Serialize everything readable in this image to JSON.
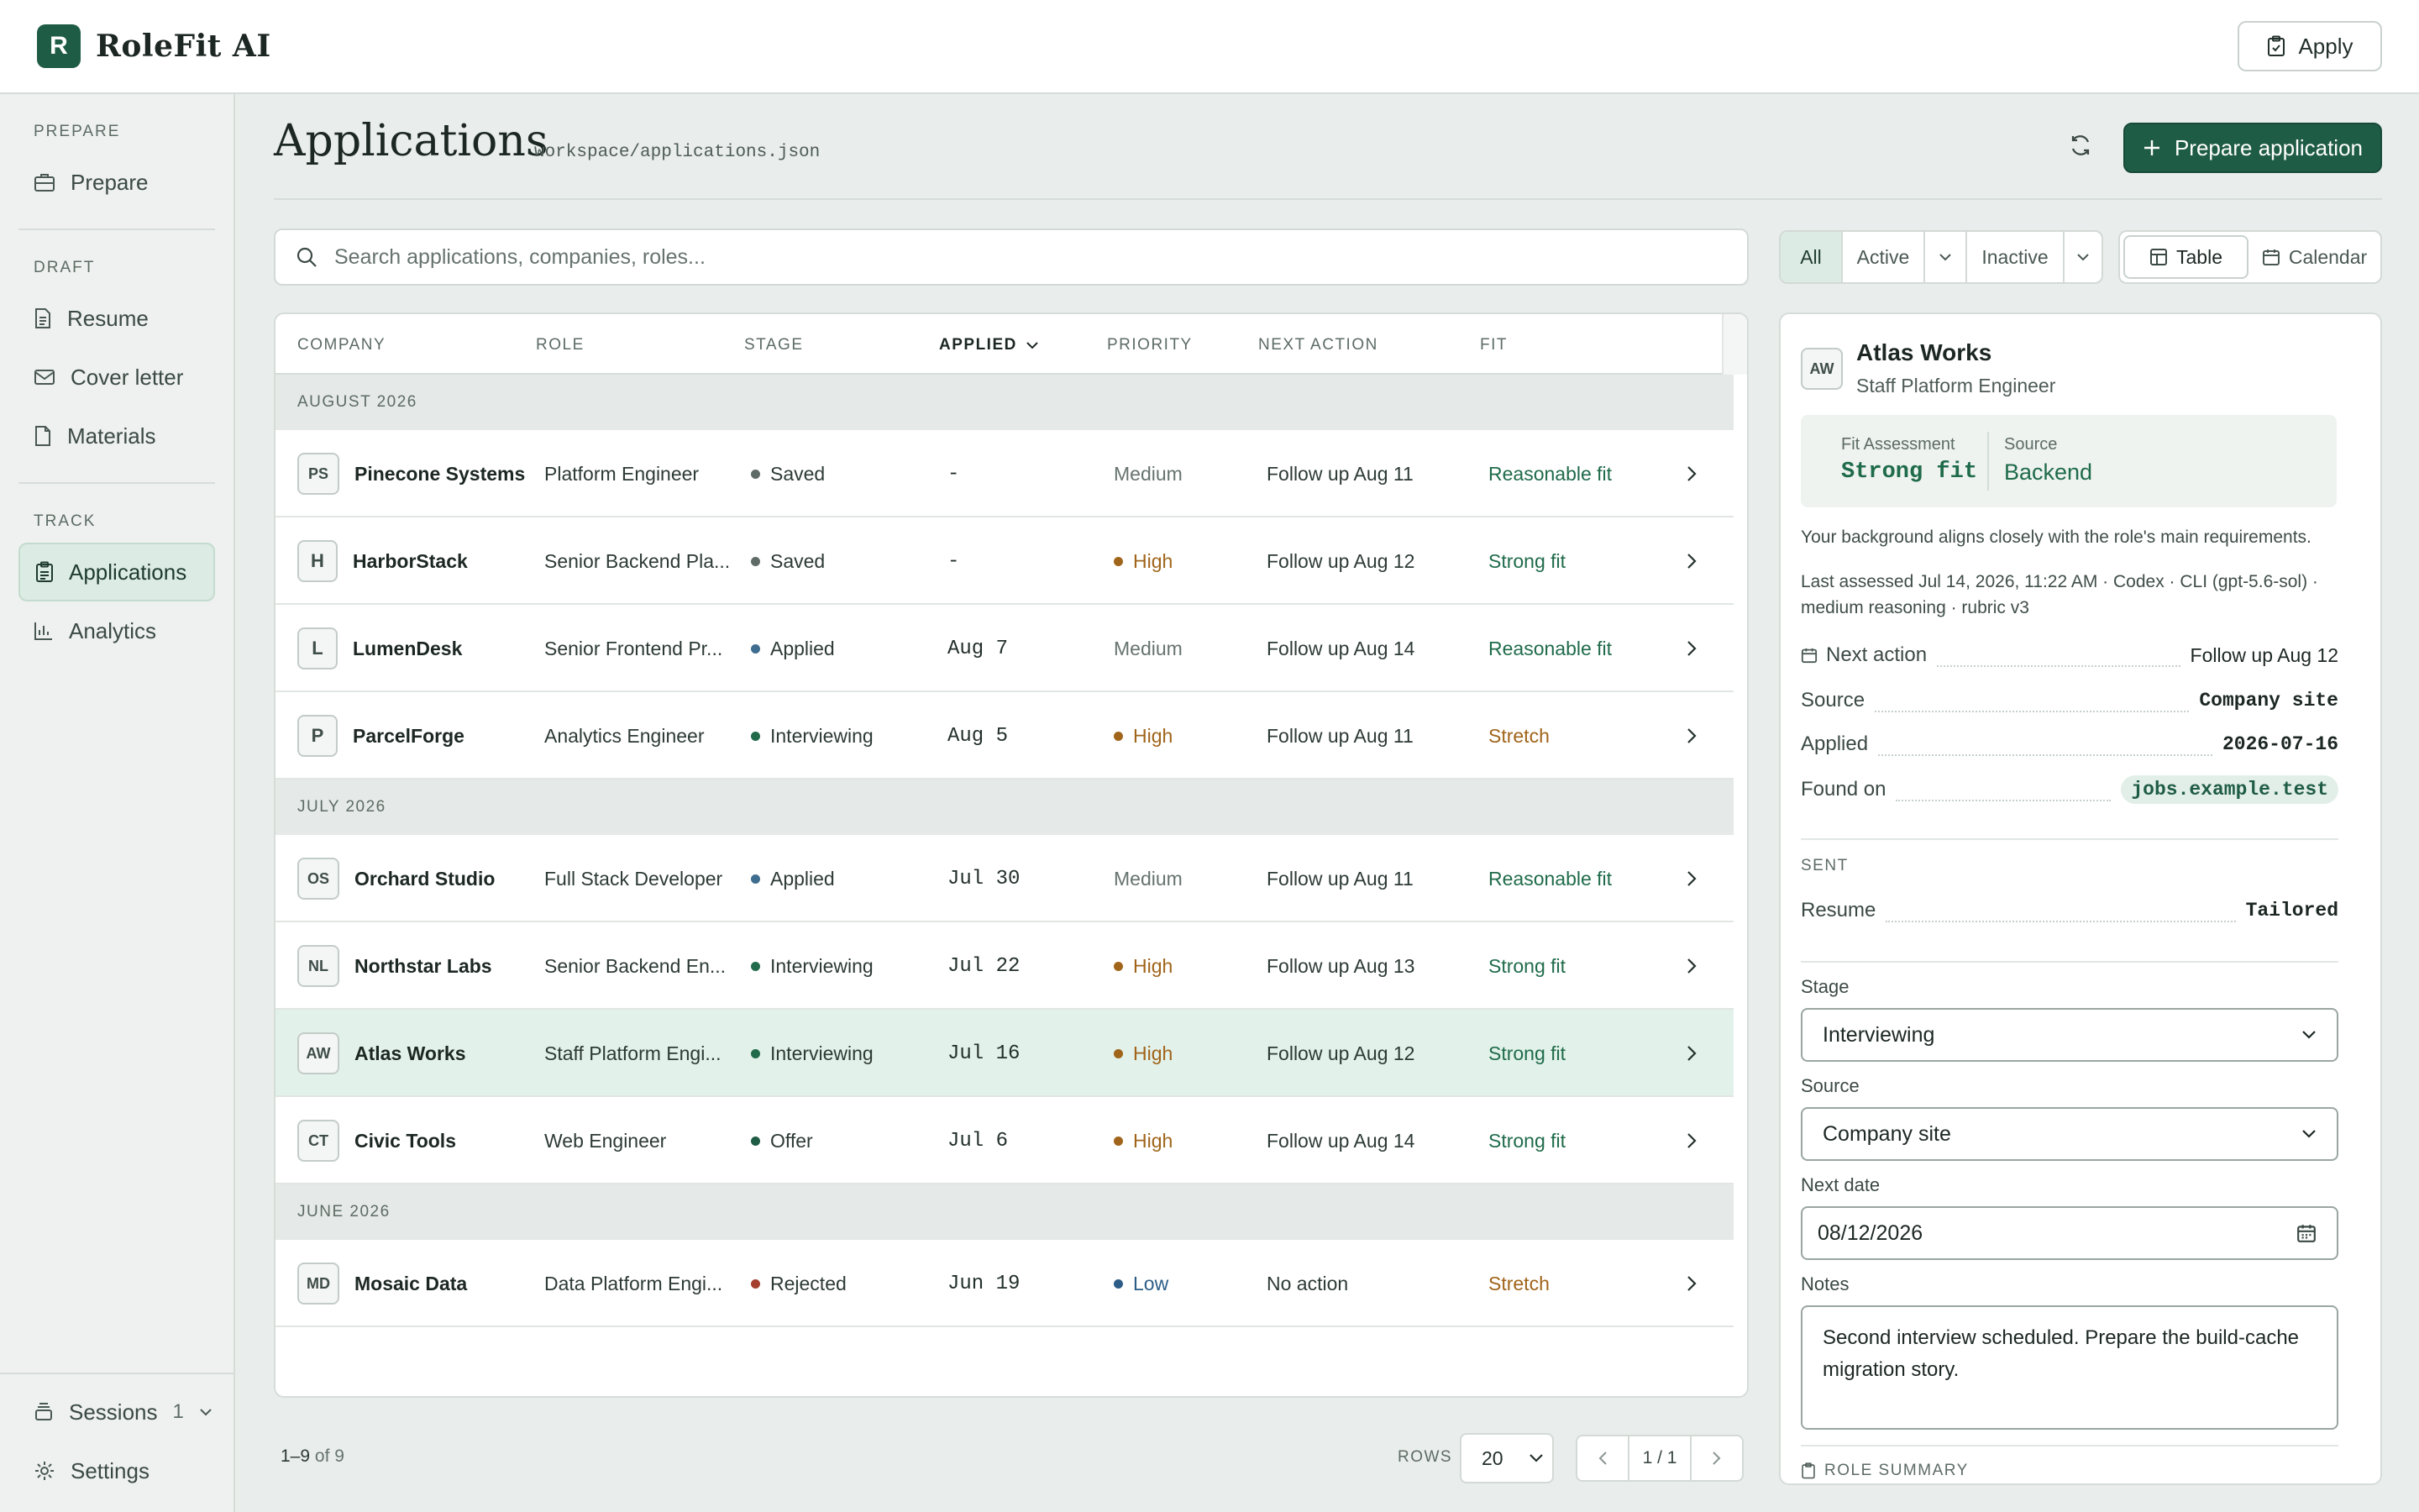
{
  "app": {
    "logo_letter": "R",
    "name": "RoleFit AI",
    "apply_label": "Apply"
  },
  "sidebar": {
    "sections": {
      "prepare": "PREPARE",
      "draft": "DRAFT",
      "track": "TRACK"
    },
    "items": {
      "prepare": "Prepare",
      "resume": "Resume",
      "cover_letter": "Cover letter",
      "materials": "Materials",
      "applications": "Applications",
      "analytics": "Analytics"
    },
    "sessions_label": "Sessions",
    "sessions_count": "1",
    "settings_label": "Settings"
  },
  "header": {
    "title": "Applications",
    "path": "workspace/applications.json",
    "prepare_label": "Prepare application"
  },
  "search": {
    "placeholder": "Search applications, companies, roles..."
  },
  "filters": {
    "all": "All",
    "active": "Active",
    "inactive": "Inactive",
    "table": "Table",
    "calendar": "Calendar"
  },
  "table": {
    "columns": {
      "company": "COMPANY",
      "role": "ROLE",
      "stage": "STAGE",
      "applied": "APPLIED",
      "priority": "PRIORITY",
      "next_action": "NEXT ACTION",
      "fit": "FIT"
    },
    "groups": [
      "AUGUST 2026",
      "JULY 2026",
      "JUNE 2026"
    ],
    "rows": [
      {
        "badge": "PS",
        "company": "Pinecone Systems",
        "role": "Platform Engineer",
        "stage": "Saved",
        "applied": "-",
        "priority": "Medium",
        "next": "Follow up Aug 11",
        "fit": "Reasonable fit"
      },
      {
        "badge": "H",
        "company": "HarborStack",
        "role": "Senior Backend Pla...",
        "stage": "Saved",
        "applied": "-",
        "priority": "High",
        "next": "Follow up Aug 12",
        "fit": "Strong fit"
      },
      {
        "badge": "L",
        "company": "LumenDesk",
        "role": "Senior Frontend Pr...",
        "stage": "Applied",
        "applied": "Aug 7",
        "priority": "Medium",
        "next": "Follow up Aug 14",
        "fit": "Reasonable fit"
      },
      {
        "badge": "P",
        "company": "ParcelForge",
        "role": "Analytics Engineer",
        "stage": "Interviewing",
        "applied": "Aug 5",
        "priority": "High",
        "next": "Follow up Aug 11",
        "fit": "Stretch"
      },
      {
        "badge": "OS",
        "company": "Orchard Studio",
        "role": "Full Stack Developer",
        "stage": "Applied",
        "applied": "Jul 30",
        "priority": "Medium",
        "next": "Follow up Aug 11",
        "fit": "Reasonable fit"
      },
      {
        "badge": "NL",
        "company": "Northstar Labs",
        "role": "Senior Backend En...",
        "stage": "Interviewing",
        "applied": "Jul 22",
        "priority": "High",
        "next": "Follow up Aug 13",
        "fit": "Strong fit"
      },
      {
        "badge": "AW",
        "company": "Atlas Works",
        "role": "Staff Platform Engi...",
        "stage": "Interviewing",
        "applied": "Jul 16",
        "priority": "High",
        "next": "Follow up Aug 12",
        "fit": "Strong fit"
      },
      {
        "badge": "CT",
        "company": "Civic Tools",
        "role": "Web Engineer",
        "stage": "Offer",
        "applied": "Jul 6",
        "priority": "High",
        "next": "Follow up Aug 14",
        "fit": "Strong fit"
      },
      {
        "badge": "MD",
        "company": "Mosaic Data",
        "role": "Data Platform Engi...",
        "stage": "Rejected",
        "applied": "Jun 19",
        "priority": "Low",
        "next": "No action",
        "fit": "Stretch"
      }
    ]
  },
  "footer": {
    "range": "1–9",
    "of": "of 9",
    "rows_label": "ROWS",
    "rows_value": "20",
    "page": "1 / 1"
  },
  "detail": {
    "badge": "AW",
    "company": "Atlas Works",
    "role": "Staff Platform Engineer",
    "fit_label": "Fit Assessment",
    "fit_value": "Strong fit",
    "source_label": "Source",
    "source_value": "Backend",
    "summary": "Your background aligns closely with the role's main requirements.",
    "assessed": "Last assessed Jul 14, 2026, 11:22 AM · Codex · CLI (gpt-5.6-sol) · medium reasoning · rubric v3",
    "next_action_label": "Next action",
    "next_action_value": "Follow up Aug 12",
    "source2_label": "Source",
    "source2_value": "Company site",
    "applied_label": "Applied",
    "applied_value": "2026-07-16",
    "found_label": "Found on",
    "found_value": "jobs.example.test",
    "sent_caption": "SENT",
    "resume_label": "Resume",
    "resume_value": "Tailored",
    "stage_label": "Stage",
    "stage_value": "Interviewing",
    "source_field_label": "Source",
    "source_field_value": "Company site",
    "next_date_label": "Next date",
    "next_date_value": "08/12/2026",
    "notes_label": "Notes",
    "notes_value": "Second interview scheduled. Prepare the build-cache migration story.",
    "role_summary_caption": "ROLE SUMMARY"
  },
  "colors": {
    "brand": "#1f5c46",
    "stage_saved": "#5f6b67",
    "stage_applied": "#3f6d8f",
    "stage_interviewing": "#1f6b4a",
    "stage_offer": "#1f5c46",
    "stage_rejected": "#a5402f",
    "priority_high": "#a0641a",
    "priority_low": "#2d5d87"
  }
}
